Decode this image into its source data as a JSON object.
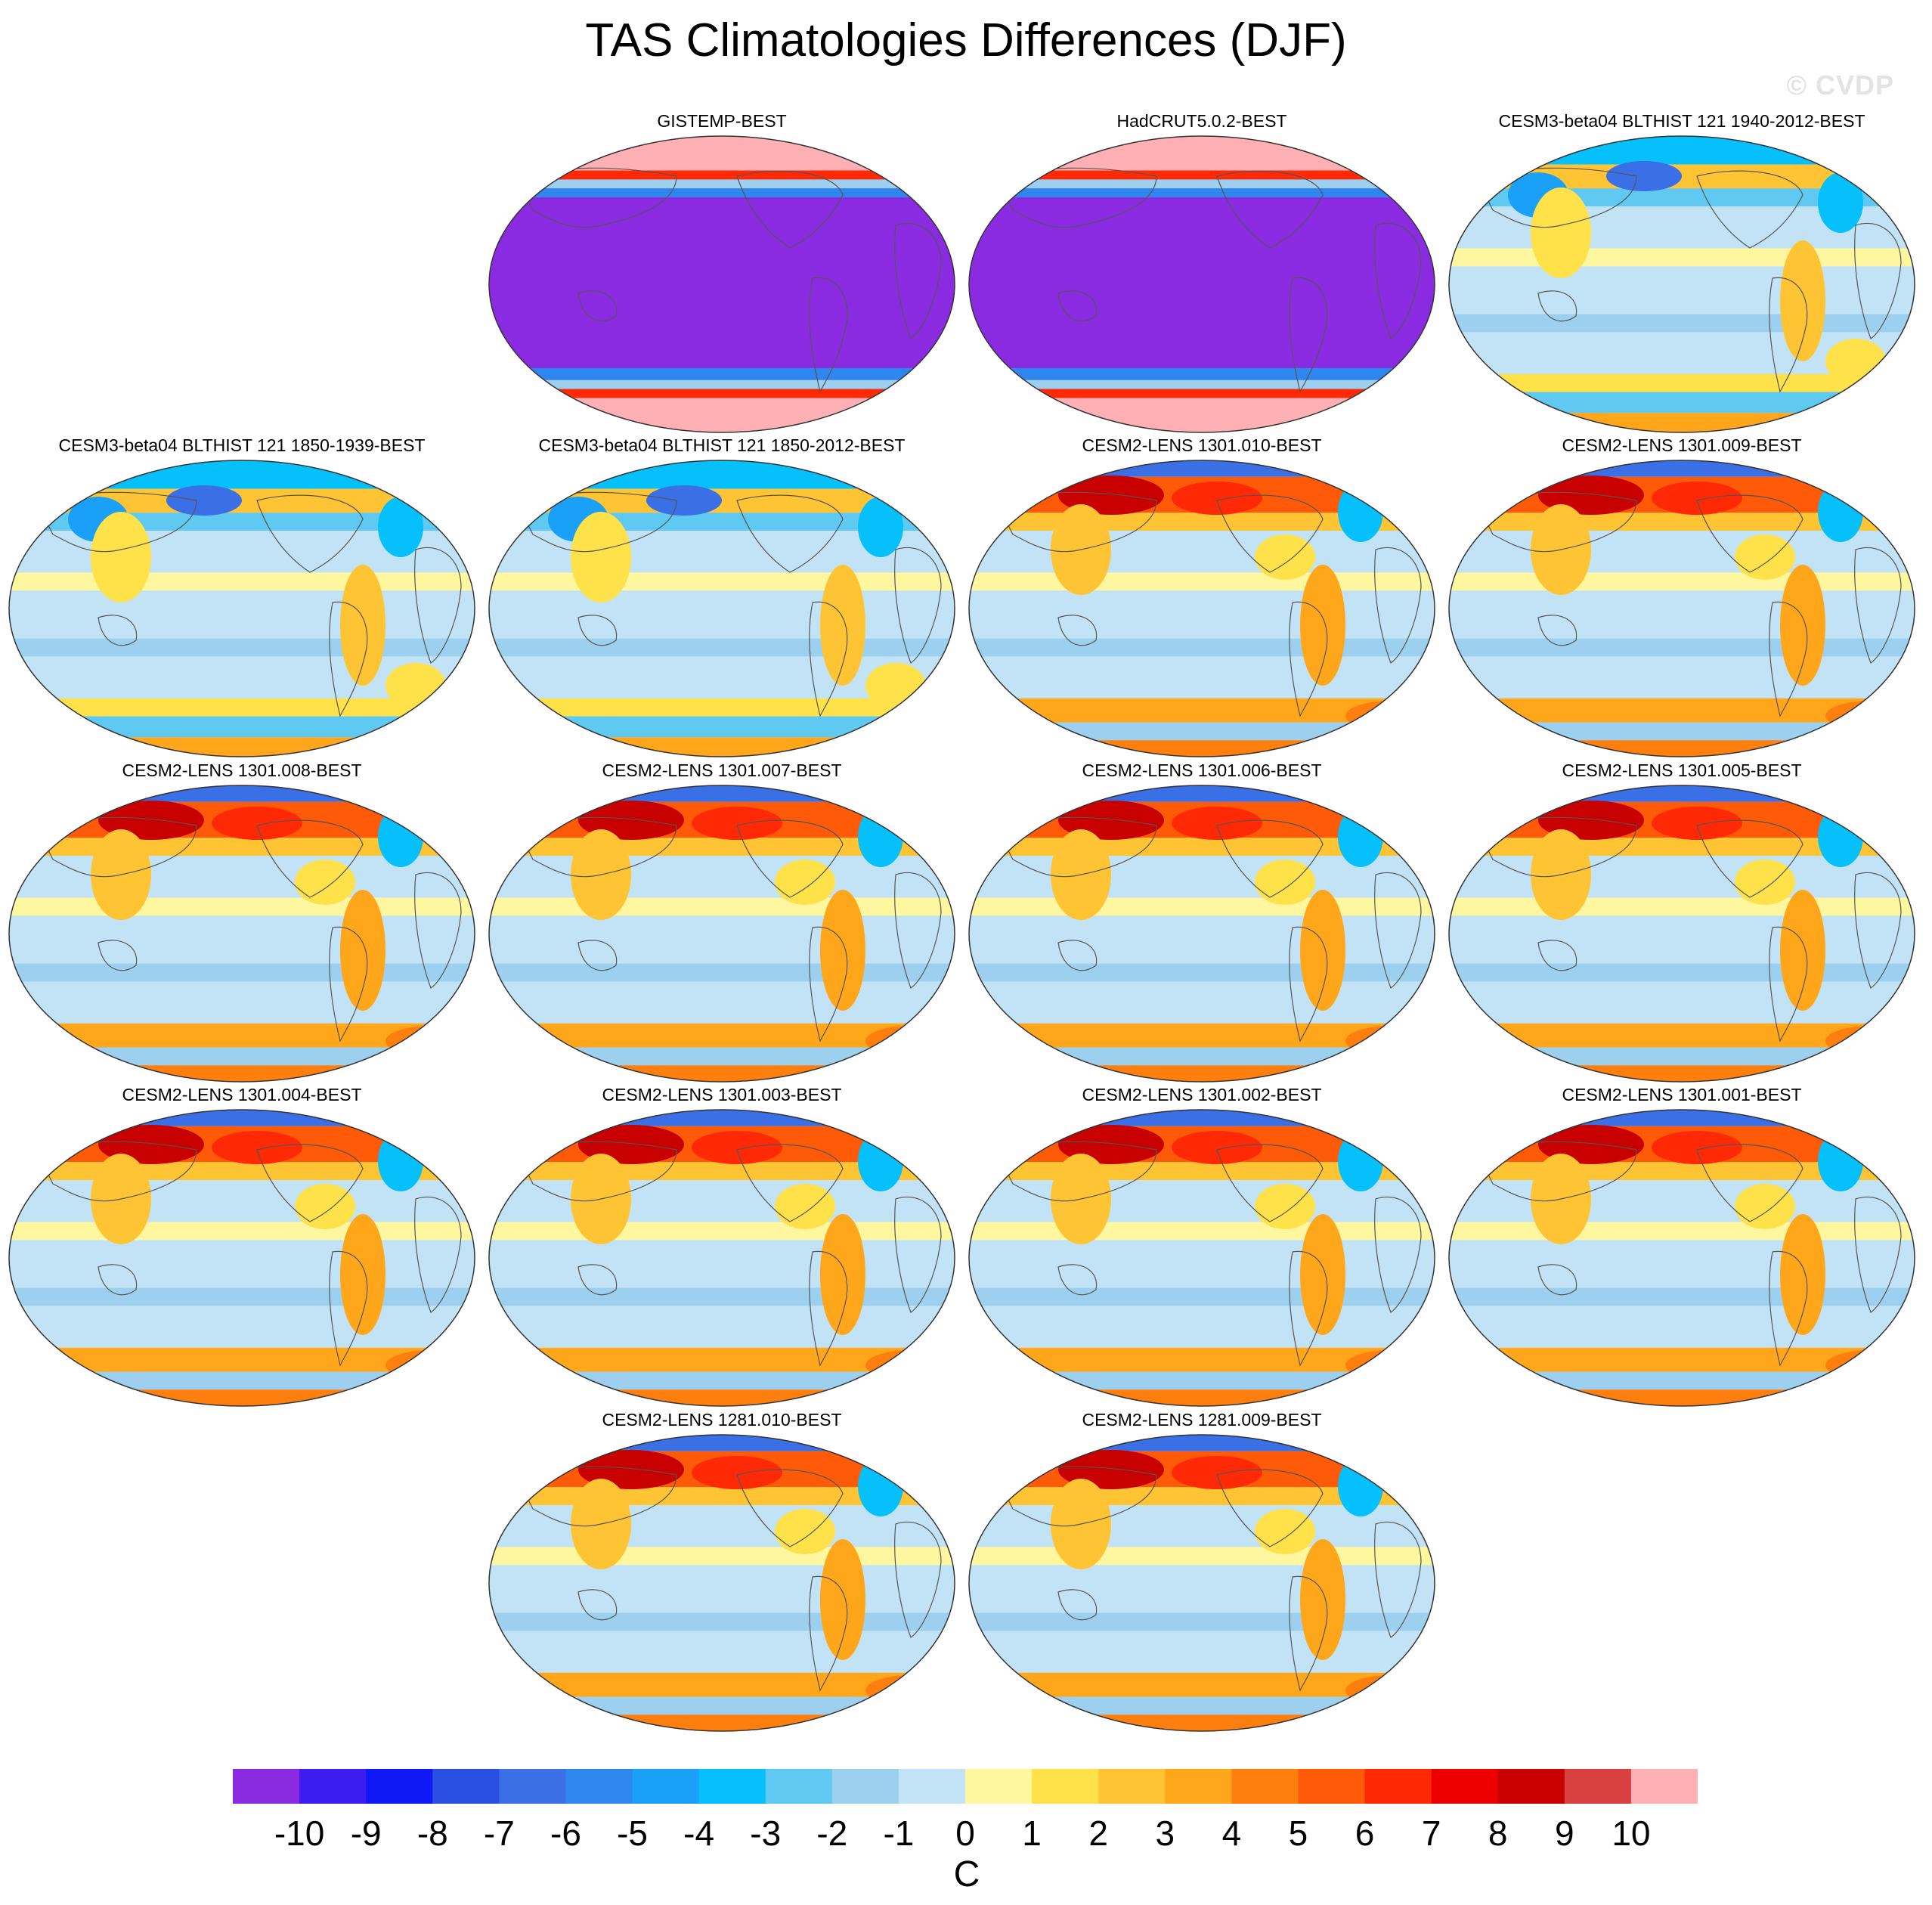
{
  "title": "TAS Climatologies Differences (DJF)",
  "watermark": "© CVDP",
  "chart_data": {
    "type": "heatmap",
    "title": "TAS Climatologies Differences (DJF)",
    "projection": "robinson-global",
    "units": "C",
    "colorbar": {
      "levels": [
        -10,
        -9,
        -8,
        -7,
        -6,
        -5,
        -4,
        -3,
        -2,
        -1,
        0,
        1,
        2,
        3,
        4,
        5,
        6,
        7,
        8,
        9,
        10
      ],
      "tick_labels": [
        "-10",
        "-9",
        "-8",
        "-7",
        "-6",
        "-5",
        "-4",
        "-3",
        "-2",
        "-1",
        "0",
        "1",
        "2",
        "3",
        "4",
        "5",
        "6",
        "7",
        "8",
        "9",
        "10"
      ],
      "colors": [
        "#8a2be2",
        "#3d1cf0",
        "#0f19f5",
        "#2b4fe3",
        "#3a6fe6",
        "#2f86ef",
        "#1aa0f7",
        "#06c0fb",
        "#5fc9f1",
        "#9dd0ee",
        "#c2e3f5",
        "#fff6a0",
        "#ffe24a",
        "#ffc433",
        "#ffa61a",
        "#ff7f0e",
        "#ff5a08",
        "#ff2a05",
        "#ec0000",
        "#c80000",
        "#d94040",
        "#ffb0b4"
      ]
    },
    "panels": [
      {
        "label": "GISTEMP-BEST",
        "pattern": "obs"
      },
      {
        "label": "HadCRUT5.0.2-BEST",
        "pattern": "obs"
      },
      {
        "label": "CESM3-beta04 BLTHIST 121 1940-2012-BEST",
        "pattern": "cesm3"
      },
      {
        "label": "CESM3-beta04 BLTHIST 121 1850-1939-BEST",
        "pattern": "cesm3"
      },
      {
        "label": "CESM3-beta04 BLTHIST 121 1850-2012-BEST",
        "pattern": "cesm3"
      },
      {
        "label": "CESM2-LENS 1301.010-BEST",
        "pattern": "cesm2"
      },
      {
        "label": "CESM2-LENS 1301.009-BEST",
        "pattern": "cesm2"
      },
      {
        "label": "CESM2-LENS 1301.008-BEST",
        "pattern": "cesm2"
      },
      {
        "label": "CESM2-LENS 1301.007-BEST",
        "pattern": "cesm2"
      },
      {
        "label": "CESM2-LENS 1301.006-BEST",
        "pattern": "cesm2"
      },
      {
        "label": "CESM2-LENS 1301.005-BEST",
        "pattern": "cesm2"
      },
      {
        "label": "CESM2-LENS 1301.004-BEST",
        "pattern": "cesm2"
      },
      {
        "label": "CESM2-LENS 1301.003-BEST",
        "pattern": "cesm2"
      },
      {
        "label": "CESM2-LENS 1301.002-BEST",
        "pattern": "cesm2"
      },
      {
        "label": "CESM2-LENS 1301.001-BEST",
        "pattern": "cesm2"
      },
      {
        "label": "CESM2-LENS 1281.010-BEST",
        "pattern": "cesm2"
      },
      {
        "label": "CESM2-LENS 1281.009-BEST",
        "pattern": "cesm2"
      }
    ]
  }
}
